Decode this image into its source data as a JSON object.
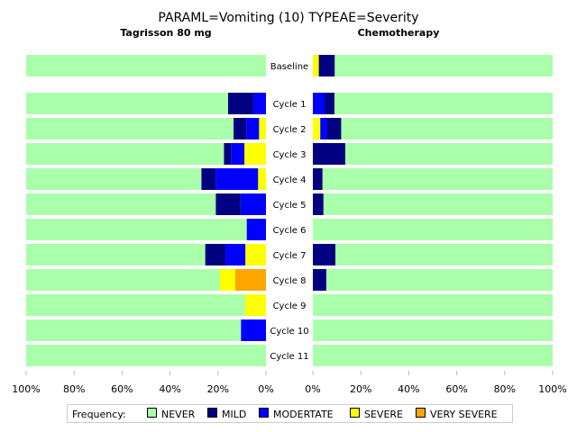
{
  "chart_data": {
    "type": "bar",
    "orientation": "horizontal-stacked-butterfly",
    "title": "PARAML=Vomiting (10)  TYPEAE=Severity",
    "panels": [
      {
        "name": "Tagrisson 80 mg",
        "direction": "left"
      },
      {
        "name": "Chemotherapy",
        "direction": "right"
      }
    ],
    "categories": [
      "Baseline",
      "Cycle 1",
      "Cycle 2",
      "Cycle 3",
      "Cycle 4",
      "Cycle 5",
      "Cycle 6",
      "Cycle 7",
      "Cycle 8",
      "Cycle 9",
      "Cycle 10",
      "Cycle 11"
    ],
    "stack_order_from_center": [
      "VERY SEVERE",
      "SEVERE",
      "MODERTATE",
      "MILD",
      "NEVER"
    ],
    "series": {
      "Tagrisson 80 mg": [
        {
          "name": "MILD",
          "values": [
            0,
            10.5,
            5.3,
            2.9,
            5.9,
            10.3,
            0,
            8.4,
            0,
            0,
            0,
            0
          ]
        },
        {
          "name": "MODERTATE",
          "values": [
            0,
            5.3,
            5.3,
            5.6,
            17.7,
            10.6,
            8.0,
            8.3,
            0,
            0,
            10.4,
            0
          ]
        },
        {
          "name": "SEVERE",
          "values": [
            0,
            0,
            2.9,
            9.0,
            3.3,
            0,
            0,
            8.6,
            6.4,
            8.6,
            0,
            0
          ]
        },
        {
          "name": "VERY SEVERE",
          "values": [
            0,
            0,
            0,
            0,
            0,
            0,
            0,
            0,
            12.8,
            0,
            0,
            0
          ]
        }
      ],
      "Chemotherapy": [
        {
          "name": "MILD",
          "values": [
            6.6,
            4.1,
            5.8,
            13.5,
            4.0,
            4.4,
            0,
            9.4,
            5.6,
            0,
            0,
            0
          ]
        },
        {
          "name": "MODERTATE",
          "values": [
            0,
            4.9,
            2.9,
            0,
            0,
            0,
            0,
            0,
            0,
            0,
            0,
            0
          ]
        },
        {
          "name": "SEVERE",
          "values": [
            2.5,
            0,
            3.1,
            0,
            0,
            0,
            0,
            0,
            0,
            0,
            0,
            0
          ]
        },
        {
          "name": "VERY SEVERE",
          "values": [
            0,
            0,
            0,
            0,
            0,
            0,
            0,
            0,
            0,
            0,
            0,
            0
          ]
        }
      ]
    },
    "xlim": [
      0,
      100
    ],
    "x_ticks_left": [
      "100%",
      "80%",
      "60%",
      "40%",
      "20%",
      "0%"
    ],
    "x_ticks_right": [
      "0%",
      "20%",
      "40%",
      "60%",
      "80%",
      "100%"
    ],
    "legend": {
      "title": "Frequency:",
      "position": "bottom",
      "items": [
        {
          "name": "NEVER",
          "color": "#aaffaa"
        },
        {
          "name": "MILD",
          "color": "#000080"
        },
        {
          "name": "MODERTATE",
          "color": "#0000ff"
        },
        {
          "name": "SEVERE",
          "color": "#ffff00"
        },
        {
          "name": "VERY SEVERE",
          "color": "#ffa500"
        }
      ]
    },
    "grid": false
  }
}
